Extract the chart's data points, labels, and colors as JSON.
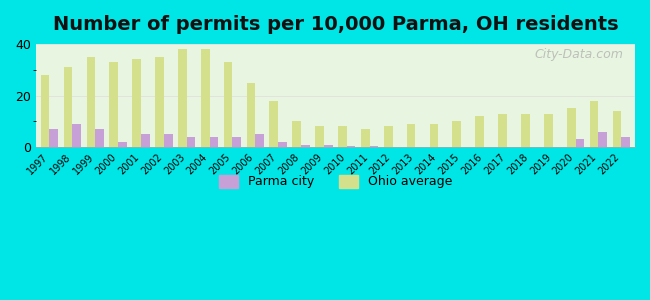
{
  "title": "Number of permits per 10,000 Parma, OH residents",
  "years": [
    1997,
    1998,
    1999,
    2000,
    2001,
    2002,
    2003,
    2004,
    2005,
    2006,
    2007,
    2008,
    2009,
    2010,
    2011,
    2012,
    2013,
    2014,
    2015,
    2016,
    2017,
    2018,
    2019,
    2020,
    2021,
    2022
  ],
  "parma_city": [
    7,
    9,
    7,
    2,
    5,
    5,
    4,
    4,
    4,
    5,
    2,
    1,
    1,
    0.3,
    0.3,
    0.2,
    0.2,
    0.2,
    0.2,
    0.2,
    0.2,
    0.1,
    0.2,
    3,
    6,
    4
  ],
  "ohio_avg": [
    28,
    31,
    35,
    33,
    34,
    35,
    38,
    38,
    33,
    25,
    18,
    10,
    8,
    8,
    7,
    8,
    9,
    9,
    10,
    12,
    13,
    13,
    13,
    15,
    18,
    14
  ],
  "parma_color": "#c8a0d8",
  "ohio_color": "#d4e08c",
  "background_outer": "#00e5e5",
  "background_plot": "#e8f5e0",
  "background_plot_top": "#ffffff",
  "ylim": [
    0,
    40
  ],
  "yticks": [
    0,
    20,
    40
  ],
  "title_fontsize": 14,
  "axis_label_fontsize": 8,
  "legend_label_parma": "Parma city",
  "legend_label_ohio": "Ohio average",
  "watermark": "City-Data.com"
}
